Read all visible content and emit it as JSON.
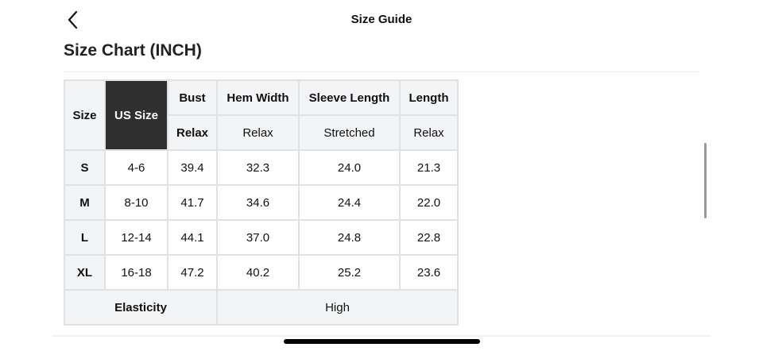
{
  "header": {
    "title": "Size Guide",
    "back_icon": "chevron-left-icon"
  },
  "heading": "Size Chart (INCH)",
  "table": {
    "headers": {
      "size": "Size",
      "us_size": "US Size",
      "bust": "Bust",
      "hem": "Hem Width",
      "sleeve": "Sleeve Length",
      "length": "Length"
    },
    "subheaders": {
      "bust": "Relax",
      "hem": "Relax",
      "sleeve": "Stretched",
      "length": "Relax"
    },
    "rows": [
      [
        "S",
        "4-6",
        "39.4",
        "32.3",
        "24.0",
        "21.3"
      ],
      [
        "M",
        "8-10",
        "41.7",
        "34.6",
        "24.4",
        "22.0"
      ],
      [
        "L",
        "12-14",
        "44.1",
        "37.0",
        "24.8",
        "22.8"
      ],
      [
        "XL",
        "16-18",
        "47.2",
        "40.2",
        "25.2",
        "23.6"
      ]
    ],
    "elasticity_label": "Elasticity",
    "elasticity_value": "High"
  },
  "colors": {
    "header_dark": "#2f2f2f",
    "cell_grey": "#f3f4f6",
    "border": "#e0e1e3"
  }
}
